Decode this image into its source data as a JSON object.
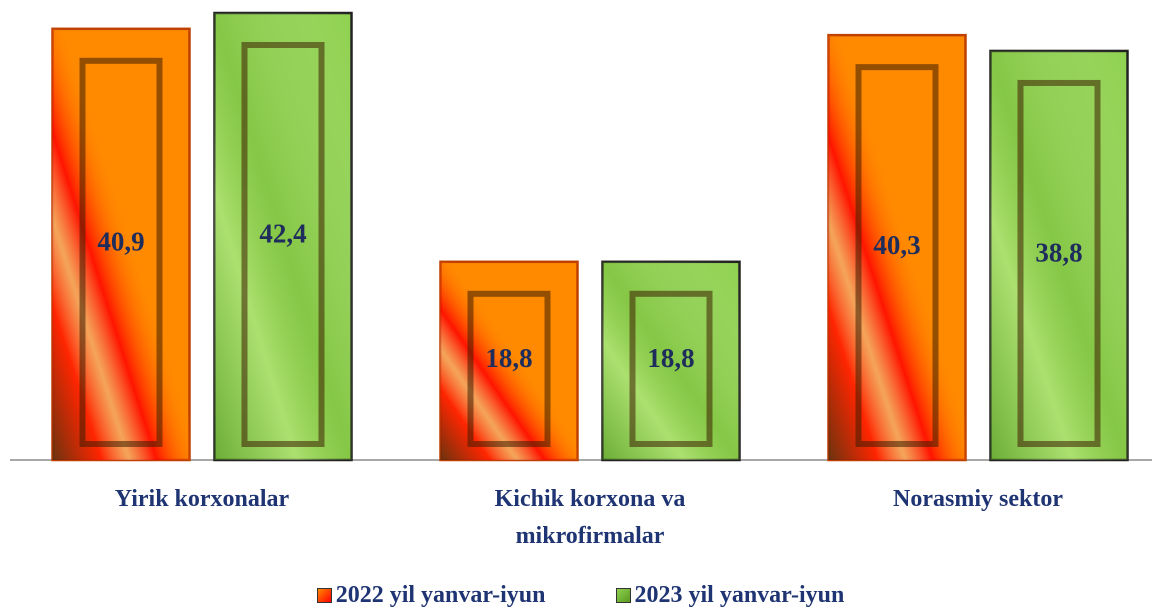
{
  "chart_data": {
    "type": "bar",
    "categories": [
      "Yirik korxonalar",
      "Kichik korxona va mikrofirmalar",
      "Norasmiy sektor"
    ],
    "series": [
      {
        "name": "2022 yil yanvar-iyun",
        "color": "#ff8a00",
        "values": [
          40.9,
          18.8,
          40.3
        ],
        "value_labels": [
          "40,9",
          "18,8",
          "40,3"
        ]
      },
      {
        "name": "2023 yil yanvar-iyun",
        "color": "#8fd14f",
        "values": [
          42.4,
          18.8,
          38.8
        ],
        "value_labels": [
          "42,4",
          "18,8",
          "38,8"
        ]
      }
    ]
  }
}
